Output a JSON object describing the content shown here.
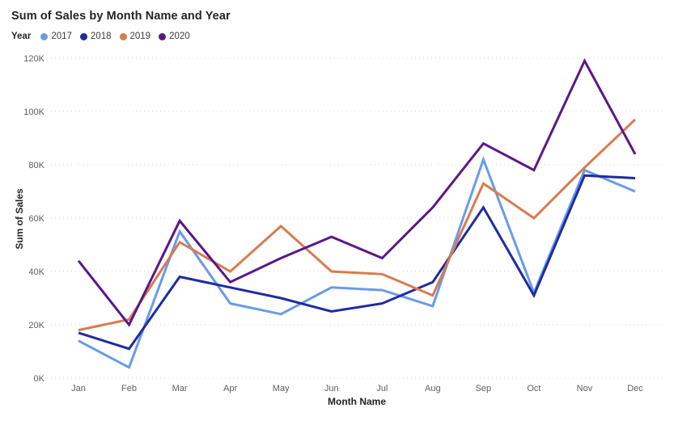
{
  "title": "Sum of Sales by Month Name and Year",
  "legend": {
    "label": "Year"
  },
  "axes": {
    "x_title": "Month Name",
    "y_title": "Sum of Sales",
    "y_tick_labels": [
      "0K",
      "20K",
      "40K",
      "60K",
      "80K",
      "100K",
      "120K"
    ]
  },
  "chart_data": {
    "type": "line",
    "title": "Sum of Sales by Month Name and Year",
    "xlabel": "Month Name",
    "ylabel": "Sum of Sales",
    "categories": [
      "Jan",
      "Feb",
      "Mar",
      "Apr",
      "May",
      "Jun",
      "Jul",
      "Aug",
      "Sep",
      "Oct",
      "Nov",
      "Dec"
    ],
    "unit": "thousands",
    "ylim_k": [
      0,
      120
    ],
    "y_tick_step_k": 20,
    "grid": "dotted-horizontal",
    "legend_position": "top-left",
    "series": [
      {
        "name": "2017",
        "color": "#699BE8",
        "values_k": [
          14,
          4,
          55,
          28,
          24,
          34,
          33,
          27,
          82,
          32,
          78,
          70
        ]
      },
      {
        "name": "2018",
        "color": "#1F2BA3",
        "values_k": [
          17,
          11,
          38,
          34,
          30,
          25,
          28,
          36,
          64,
          31,
          76,
          75
        ]
      },
      {
        "name": "2019",
        "color": "#D97B4F",
        "values_k": [
          18,
          22,
          51,
          40,
          57,
          40,
          39,
          31,
          73,
          60,
          79,
          97
        ]
      },
      {
        "name": "2020",
        "color": "#5C1687",
        "values_k": [
          44,
          20,
          59,
          36,
          45,
          53,
          45,
          64,
          88,
          78,
          119,
          84
        ]
      }
    ]
  }
}
